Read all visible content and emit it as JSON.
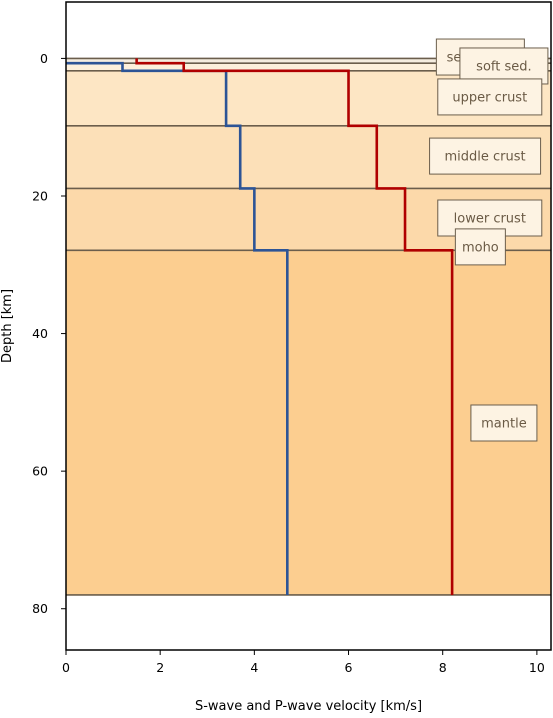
{
  "chart_data": {
    "type": "line",
    "xlabel": "S-wave and P-wave velocity [km/s]",
    "ylabel": "Depth [km]",
    "xlim": [
      0,
      10.3
    ],
    "ylim": [
      86,
      -8.2
    ],
    "y_inverted": true,
    "grid": false,
    "x_ticks": [
      0,
      2,
      4,
      6,
      8,
      10
    ],
    "y_ticks": [
      0,
      20,
      40,
      60,
      80
    ],
    "layers": [
      {
        "name": "sediments",
        "top": 0,
        "bottom": 0.7,
        "color": "#f5ede0",
        "label": "sediments",
        "label_v": 8.8,
        "label_depth": -0.2
      },
      {
        "name": "soft sed.",
        "top": 0.7,
        "bottom": 1.8,
        "color": "#fdf0dc",
        "label": "soft sed.",
        "label_v": 9.3,
        "label_depth": 1.1
      },
      {
        "name": "upper crust",
        "top": 1.8,
        "bottom": 9.8,
        "color": "#fde6c4",
        "label": "upper crust",
        "label_v": 9.0,
        "label_depth": 5.6
      },
      {
        "name": "middle crust",
        "top": 9.8,
        "bottom": 18.9,
        "color": "#fce0b8",
        "label": "middle crust",
        "label_v": 8.9,
        "label_depth": 14.2
      },
      {
        "name": "lower crust",
        "top": 18.9,
        "bottom": 27.9,
        "color": "#fcd9aa",
        "label": "lower crust",
        "label_v": 9.0,
        "label_depth": 23.2
      },
      {
        "name": "mantle",
        "top": 27.9,
        "bottom": 78,
        "color": "#fcce90",
        "label": "mantle",
        "label_v": 9.3,
        "label_depth": 53.0
      }
    ],
    "extra_labels": [
      {
        "label": "moho",
        "v": 8.8,
        "depth": 27.4
      }
    ],
    "series": [
      {
        "color": "#2c5496",
        "depth": [
          0.7,
          0.7,
          1.8,
          1.8,
          9.8,
          9.8,
          18.9,
          18.9,
          27.9,
          27.9,
          78
        ],
        "velocity": [
          0,
          1.2,
          1.2,
          3.4,
          3.4,
          3.7,
          3.7,
          4.0,
          4.0,
          4.7,
          4.7
        ]
      },
      {
        "color": "#b00000",
        "depth": [
          0,
          0.7,
          0.7,
          1.8,
          1.8,
          9.8,
          9.8,
          18.9,
          18.9,
          27.9,
          27.9,
          78
        ],
        "velocity": [
          1.5,
          1.5,
          2.5,
          2.5,
          6.0,
          6.0,
          6.6,
          6.6,
          7.2,
          7.2,
          8.2,
          8.2
        ]
      }
    ]
  }
}
